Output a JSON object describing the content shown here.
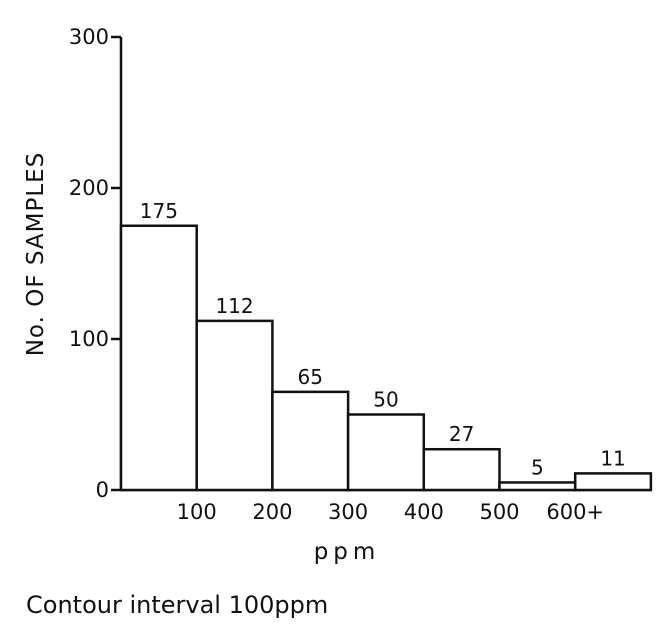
{
  "chart_data": {
    "type": "bar",
    "bin_edges": [
      0,
      100,
      200,
      300,
      400,
      500,
      600,
      700
    ],
    "values": [
      175,
      112,
      65,
      50,
      27,
      5,
      11
    ],
    "data_labels": [
      "175",
      "112",
      "65",
      "50",
      "27",
      "5",
      "11"
    ],
    "x_tick_labels": [
      "100",
      "200",
      "300",
      "400",
      "500",
      "600+"
    ],
    "x_tick_values": [
      100,
      200,
      300,
      400,
      500,
      600
    ],
    "y_ticks": [
      0,
      100,
      200,
      300
    ],
    "y_tick_labels": [
      "0",
      "100",
      "200",
      "300"
    ],
    "ylim": [
      0,
      300
    ],
    "xlabel": "ppm",
    "ylabel": "No. OF SAMPLES",
    "caption": "Contour interval 100ppm",
    "grid": false,
    "bar_fill": "#ffffff",
    "stroke_color": "#111111"
  }
}
